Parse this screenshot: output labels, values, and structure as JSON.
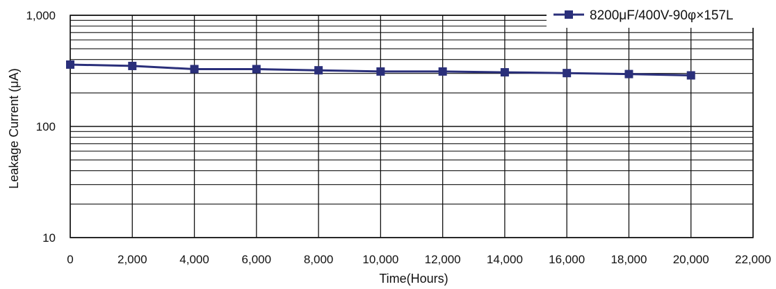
{
  "colors": {
    "series_line": "#2a2f7a",
    "series_marker": "#2a2f7a",
    "grid": "#111111",
    "background": "#ffffff"
  },
  "chart_data": {
    "type": "line",
    "title": "",
    "xlabel": "Time(Hours)",
    "ylabel": "Leakage Current (μA)",
    "xlim": [
      0,
      22000
    ],
    "ylim": [
      10,
      1000
    ],
    "y_scale": "log",
    "grid": true,
    "legend_position": "top-right",
    "x_ticks": [
      0,
      2000,
      4000,
      6000,
      8000,
      10000,
      12000,
      14000,
      16000,
      18000,
      20000,
      22000
    ],
    "x_tick_labels": [
      "0",
      "2,000",
      "4,000",
      "6,000",
      "8,000",
      "10,000",
      "12,000",
      "14,000",
      "16,000",
      "18,000",
      "20,000",
      "22,000"
    ],
    "y_ticks": [
      10,
      100,
      1000
    ],
    "y_tick_labels": [
      "10",
      "100",
      "1,000"
    ],
    "series": [
      {
        "name": "8200μF/400V-90φ×157L",
        "marker": "square",
        "x": [
          0,
          2000,
          4000,
          6000,
          8000,
          10000,
          12000,
          14000,
          16000,
          18000,
          20000
        ],
        "y": [
          360,
          350,
          328,
          328,
          320,
          312,
          312,
          307,
          302,
          296,
          288
        ]
      }
    ]
  }
}
